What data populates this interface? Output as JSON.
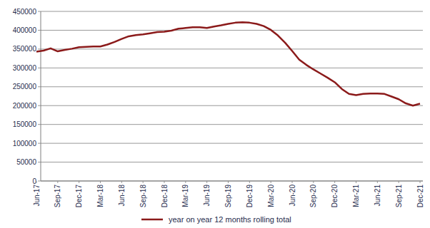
{
  "chart_data": {
    "type": "line",
    "categories": [
      "Jun-17",
      null,
      null,
      "Sep-17",
      null,
      null,
      "Dec-17",
      null,
      null,
      "Mar-18",
      null,
      null,
      "Jun-18",
      null,
      null,
      "Sep-18",
      null,
      null,
      "Dec-18",
      null,
      null,
      "Mar-19",
      null,
      null,
      "Jun-19",
      null,
      null,
      "Sep-19",
      null,
      null,
      "Dec-19",
      null,
      null,
      "Mar-20",
      null,
      null,
      "Jun-20",
      null,
      null,
      "Sep-20",
      null,
      null,
      "Dec-20",
      null,
      null,
      "Mar-21",
      null,
      null,
      "Jun-21",
      null,
      null,
      "Sep-21",
      null,
      null,
      "Dec-21"
    ],
    "series": [
      {
        "name": "year on year 12 months rolling total",
        "color": "#8b1a1a",
        "values": [
          343000,
          346000,
          352000,
          344000,
          348000,
          351000,
          355000,
          356000,
          357000,
          357000,
          362000,
          369000,
          377000,
          384000,
          387000,
          389000,
          392000,
          395000,
          396000,
          399000,
          404000,
          406000,
          408000,
          408000,
          406000,
          410000,
          413000,
          417000,
          420000,
          421000,
          420000,
          417000,
          411000,
          401000,
          386000,
          367000,
          345000,
          322000,
          308000,
          296000,
          285000,
          274000,
          262000,
          244000,
          231000,
          228000,
          231000,
          232000,
          232000,
          231000,
          224000,
          217000,
          206000,
          200000,
          205000
        ]
      }
    ],
    "ylim": [
      0,
      450000
    ],
    "yticks": [
      0,
      50000,
      100000,
      150000,
      200000,
      250000,
      300000,
      350000,
      400000,
      450000
    ],
    "grid": true,
    "legend": "bottom"
  }
}
